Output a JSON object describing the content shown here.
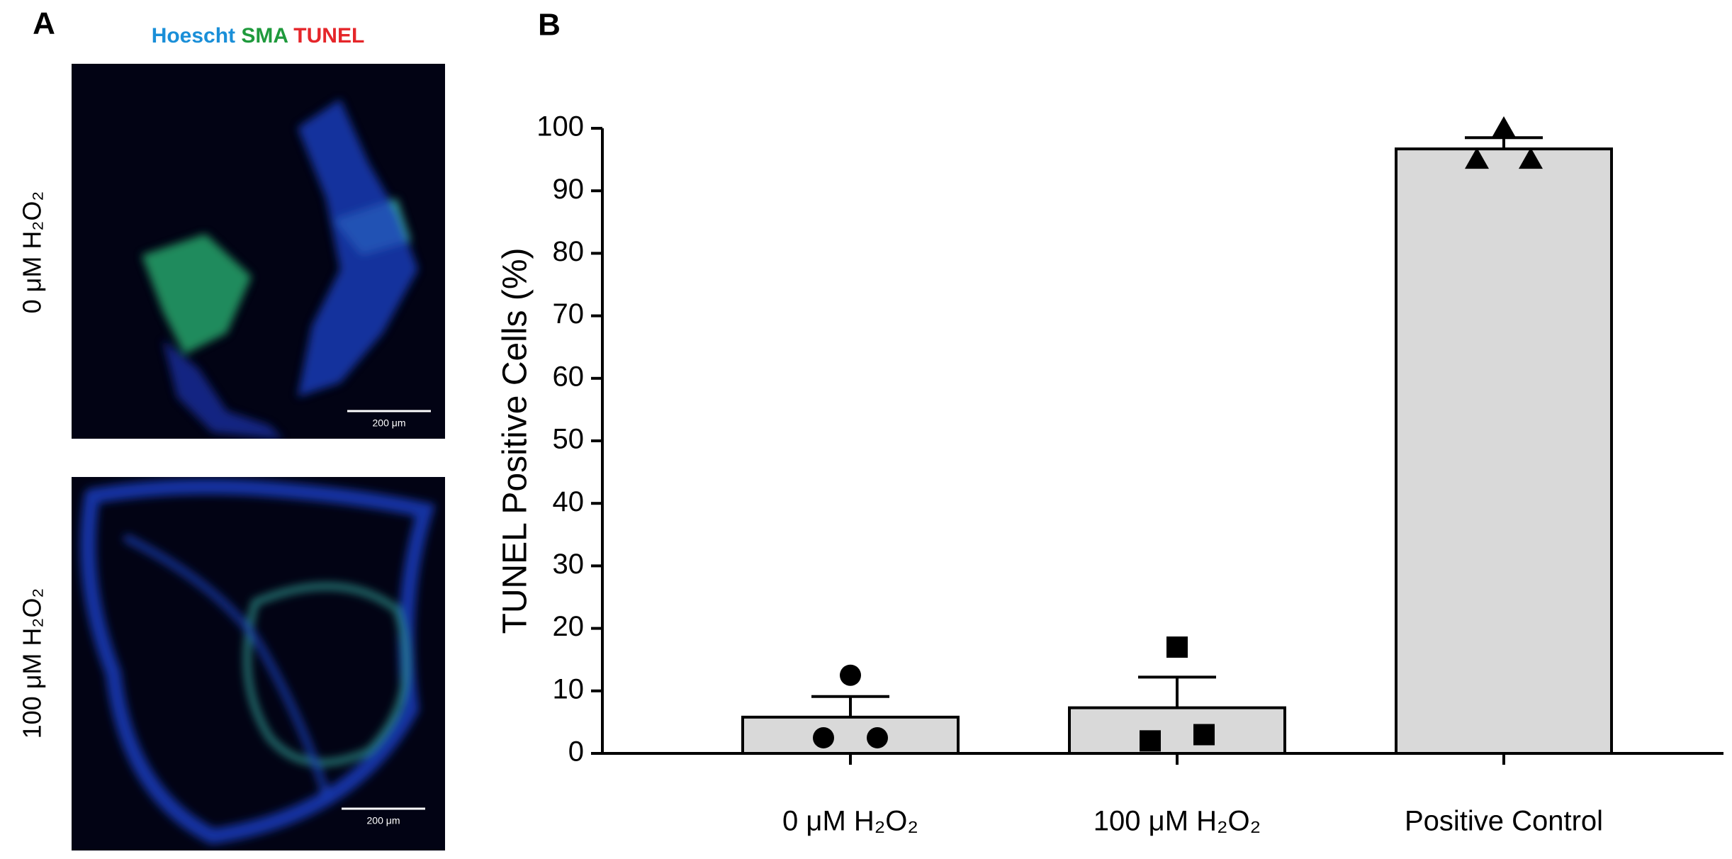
{
  "panel_a": {
    "label": "A",
    "stains": [
      {
        "label": "Hoescht",
        "color": "#1a8fd8"
      },
      {
        "label": "SMA",
        "color": "#1f9a3c"
      },
      {
        "label": "TUNEL",
        "color": "#e5262a"
      }
    ],
    "rows": [
      {
        "label": "0 μM H₂O₂",
        "scale_bar": "200 μm"
      },
      {
        "label": "100 μM H₂O₂",
        "scale_bar": "200 μm"
      }
    ]
  },
  "chart_data": {
    "type": "bar",
    "panel_label": "B",
    "ylabel": "TUNEL Positive Cells (%)",
    "categories": [
      "0 μM H₂O₂",
      "100 μM H₂O₂",
      "Positive Control"
    ],
    "values": [
      5.8,
      7.3,
      96.7
    ],
    "errors": [
      3.3,
      4.9,
      1.8
    ],
    "points": [
      [
        12.5,
        2.5,
        2.5
      ],
      [
        17,
        2,
        3
      ],
      [
        100,
        95,
        95
      ]
    ],
    "markers": [
      "circle",
      "square",
      "triangle"
    ],
    "color": "#d9d9d9",
    "ylim": [
      0,
      100
    ],
    "yticks": [
      0,
      10,
      20,
      30,
      40,
      50,
      60,
      70,
      80,
      90,
      100
    ]
  }
}
